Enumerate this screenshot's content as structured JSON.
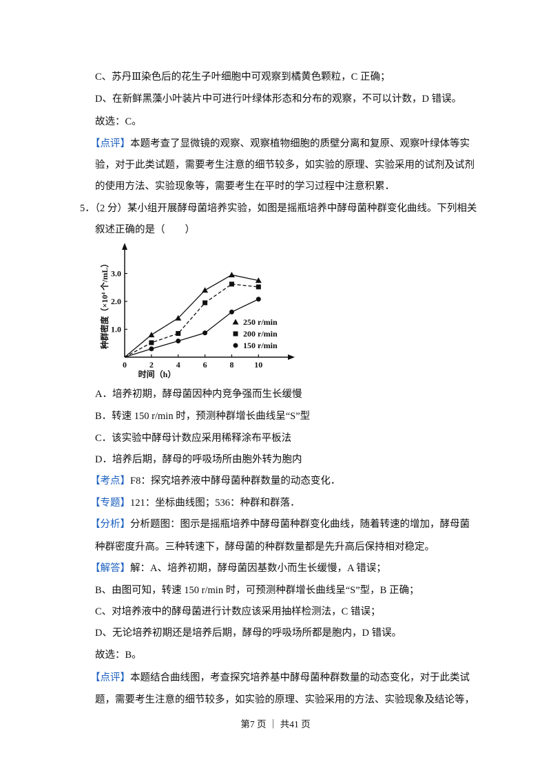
{
  "previous_solution": {
    "lines": [
      "C、苏丹Ⅲ染色后的花生子叶细胞中可观察到橘黄色颗粒，C 正确；",
      "D、在新鲜黑藻小叶装片中可进行叶绿体形态和分布的观察，不可以计数，D 错误。"
    ],
    "conclusion": "故选：C。",
    "comment": {
      "tag": "【点评】",
      "lines": [
        "本题考查了显微镜的观察、观察植物细胞的质壁分离和复原、观察叶绿体等实",
        "验，对于此类试题，需要考生注意的细节较多，如实验的原理、实验采用的试剂及试剂",
        "的使用方法、实验现象等，需要考生在平时的学习过程中注意积累．"
      ]
    }
  },
  "question": {
    "number": "5．",
    "stem": [
      "（2 分）某小组开展酵母菌培养实验，如图是摇瓶培养中酵母菌种群变化曲线。下列相关",
      "叙述正确的是（　　）"
    ],
    "figure": {
      "type": "line",
      "y_label": "种群密度（×10⁴ 个/mL）",
      "x_label": "时间（h）",
      "x": [
        0,
        2,
        4,
        6,
        8,
        10
      ],
      "xlim": [
        0,
        12.3
      ],
      "xticks": [
        0,
        2,
        4,
        6,
        8,
        10
      ],
      "ylim": [
        0,
        3.9
      ],
      "yticks": [
        {
          "value": 1,
          "label": "1.0"
        },
        {
          "value": 2,
          "label": "2.0"
        },
        {
          "value": 3,
          "label": "3.0"
        }
      ],
      "series": [
        {
          "name": "250 r/min",
          "color": "#111111",
          "marker": "triangle",
          "dashed": false,
          "values": [
            0,
            0.8,
            1.4,
            2.4,
            2.95,
            2.75
          ]
        },
        {
          "name": "200 r/min",
          "color": "#111111",
          "marker": "square",
          "dashed": true,
          "values": [
            0,
            0.52,
            0.85,
            1.95,
            2.62,
            2.52
          ]
        },
        {
          "name": "150 r/min",
          "color": "#111111",
          "marker": "circle",
          "dashed": false,
          "values": [
            0,
            0.3,
            0.58,
            0.87,
            1.62,
            2.08
          ]
        }
      ]
    },
    "options": [
      "A．培养初期，酵母菌因种内竞争强而生长缓慢",
      "B．转速 150 r/min 时，预测种群增长曲线呈“S”型",
      "C．该实验中酵母计数应采用稀释涂布平板法",
      "D．培养后期，酵母的呼吸场所由胞外转为胞内"
    ]
  },
  "solution": {
    "knowledge": {
      "tag": "【考点】",
      "text": "F8：探究培养液中酵母菌种群数量的动态变化．"
    },
    "topic": {
      "tag": "【专题】",
      "text": "121：坐标曲线图；536：种群和群落．"
    },
    "analysis": {
      "tag": "【分析】",
      "lines": [
        "分析题图：图示是摇瓶培养中酵母菌种群变化曲线，随着转速的增加，酵母菌",
        "种群密度升高。三种转速下，酵母菌的种群数量都是先升高后保持相对稳定。"
      ]
    },
    "answer": {
      "tag": "【解答】",
      "lines": [
        "解：A、培养初期，酵母菌因基数小而生长缓慢，A 错误；",
        "B、由图可知，转速 150 r/min 时，可预测种群增长曲线呈“S”型，B 正确；",
        "C、对培养液中的酵母菌进行计数应该采用抽样检测法，C 错误；",
        "D、无论培养初期还是培养后期，酵母的呼吸场所都是胞内，D 错误。"
      ]
    },
    "conclusion": "故选：B。",
    "comment": {
      "tag": "【点评】",
      "lines": [
        "本题结合曲线图，考查探究培养基中酵母菌种群数量的动态变化，对于此类试",
        "题，需要考生注意的细节较多，如实验的原理、实验采用的方法、实验现象及结论等，"
      ]
    }
  },
  "footer": "第7 页 ｜ 共41 页"
}
